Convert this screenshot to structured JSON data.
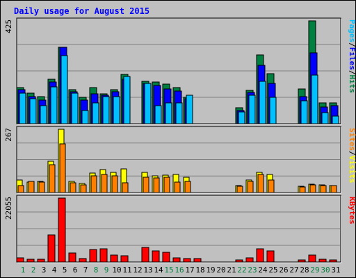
{
  "chart_data": {
    "type": "bar",
    "title": "Daily usage for August 2015",
    "colors": {
      "background": "#c0c0c0",
      "panel": "#c0c0c0",
      "title": "#0000ff",
      "hits": "#008040",
      "files": "#0000ff",
      "pages": "#00c0ff",
      "visits": "#ffff00",
      "sites": "#ff8000",
      "kbytes": "#ff0000",
      "day": "#000000",
      "weekend_day": "#008040"
    },
    "days": [
      "1",
      "2",
      "3",
      "4",
      "5",
      "6",
      "7",
      "8",
      "9",
      "10",
      "11",
      "12",
      "13",
      "14",
      "15",
      "16",
      "17",
      "18",
      "19",
      "20",
      "21",
      "22",
      "23",
      "24",
      "25",
      "26",
      "27",
      "28",
      "29",
      "30",
      "31"
    ],
    "weekend_days": [
      "1",
      "2",
      "8",
      "9",
      "15",
      "16",
      "22",
      "23",
      "29",
      "30"
    ],
    "panels": [
      {
        "id": "top",
        "scale_label": "425",
        "max": 425,
        "series_legend": [
          {
            "name": "Pages",
            "color_key": "pages"
          },
          {
            "name": "/",
            "color_key": "day"
          },
          {
            "name": "Files",
            "color_key": "files"
          },
          {
            "name": "/",
            "color_key": "day"
          },
          {
            "name": "Hits",
            "color_key": "hits"
          }
        ],
        "series": [
          {
            "name": "Hits",
            "color_key": "hits",
            "values": [
              148,
              126,
              113,
              184,
              317,
              141,
              108,
              149,
              124,
              141,
              203,
              0,
              174,
              172,
              163,
              150,
              109,
              0,
              0,
              0,
              0,
              66,
              139,
              285,
              206,
              0,
              0,
              143,
              425,
              85,
              85
            ]
          },
          {
            "name": "Files",
            "color_key": "files",
            "values": [
              142,
              111,
              97,
              171,
              315,
              131,
              99,
              123,
              117,
              132,
              184,
              0,
              166,
              159,
              145,
              136,
              103,
              0,
              0,
              0,
              0,
              54,
              129,
              242,
              167,
              0,
              0,
              112,
              294,
              70,
              74
            ]
          },
          {
            "name": "Pages",
            "color_key": "pages",
            "values": [
              126,
              102,
              76,
              151,
              280,
              126,
              54,
              86,
              111,
              111,
              194,
              0,
              166,
              76,
              85,
              85,
              118,
              0,
              0,
              0,
              0,
              48,
              119,
              174,
              110,
              0,
              0,
              94,
              202,
              46,
              31
            ]
          }
        ]
      },
      {
        "id": "middle",
        "scale_label": "267",
        "max": 267,
        "series_legend": [
          {
            "name": "Sites",
            "color_key": "sites"
          },
          {
            "name": "/",
            "color_key": "day"
          },
          {
            "name": "Visits",
            "color_key": "visits"
          }
        ],
        "series": [
          {
            "name": "Visits",
            "color_key": "visits",
            "values": [
              54,
              45,
              48,
              132,
              267,
              48,
              38,
              82,
              98,
              86,
              101,
              0,
              86,
              70,
              74,
              77,
              66,
              0,
              0,
              0,
              0,
              29,
              54,
              86,
              76,
              0,
              0,
              26,
              35,
              32,
              29
            ]
          },
          {
            "name": "Sites",
            "color_key": "sites",
            "values": [
              30,
              48,
              45,
              118,
              204,
              41,
              32,
              70,
              75,
              70,
              41,
              0,
              66,
              62,
              65,
              43,
              48,
              0,
              0,
              0,
              0,
              26,
              48,
              77,
              54,
              0,
              0,
              23,
              32,
              29,
              28
            ]
          }
        ]
      },
      {
        "id": "bottom",
        "scale_label": "22055",
        "max": 22055,
        "series_legend": [
          {
            "name": "KBytes",
            "color_key": "kbytes"
          }
        ],
        "series": [
          {
            "name": "KBytes",
            "color_key": "kbytes",
            "values": [
              1400,
              1000,
              900,
              9300,
              22055,
              3000,
              1100,
              4300,
              4600,
              2400,
              2200,
              0,
              5000,
              3800,
              3300,
              1400,
              1300,
              1300,
              0,
              0,
              0,
              700,
              1500,
              4500,
              3900,
              0,
              0,
              700,
              2400,
              900,
              800
            ]
          }
        ]
      }
    ]
  }
}
